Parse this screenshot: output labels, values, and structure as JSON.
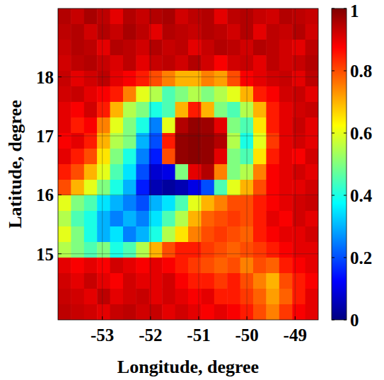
{
  "chart_data": {
    "type": "heatmap",
    "x_label": "Longitude, degree",
    "y_label": "Latitude, degree",
    "xlim": [
      -53.92,
      -48.52
    ],
    "ylim": [
      13.88,
      19.16
    ],
    "xticks": [
      -53,
      -52,
      -51,
      -50,
      -49
    ],
    "yticks": [
      15,
      16,
      17,
      18
    ],
    "grid": true,
    "color": "jet",
    "clim": [
      0,
      1
    ],
    "cticks": [
      0,
      0.2,
      0.4,
      0.6,
      0.8,
      1
    ],
    "z": [
      [
        0.95,
        0.93,
        0.96,
        0.94,
        0.9,
        0.95,
        0.93,
        0.95,
        0.96,
        0.92,
        0.94,
        0.95,
        0.9,
        0.94,
        0.95,
        0.93,
        0.92,
        0.95,
        0.94,
        0.93
      ],
      [
        0.94,
        0.95,
        0.92,
        0.95,
        0.93,
        0.96,
        0.94,
        0.9,
        0.95,
        0.94,
        0.93,
        0.95,
        0.94,
        0.92,
        0.95,
        0.9,
        0.94,
        0.93,
        0.95,
        0.92
      ],
      [
        0.93,
        0.95,
        0.94,
        0.9,
        0.95,
        0.94,
        0.92,
        0.95,
        0.93,
        0.94,
        0.9,
        0.93,
        0.95,
        0.94,
        0.92,
        0.95,
        0.94,
        0.92,
        0.9,
        0.94
      ],
      [
        0.92,
        0.94,
        0.95,
        0.93,
        0.91,
        0.94,
        0.9,
        0.93,
        0.94,
        0.92,
        0.95,
        0.92,
        0.88,
        0.92,
        0.93,
        0.9,
        0.94,
        0.92,
        0.93,
        0.95
      ],
      [
        0.93,
        0.9,
        0.92,
        0.94,
        0.9,
        0.88,
        0.85,
        0.8,
        0.75,
        0.7,
        0.7,
        0.75,
        0.72,
        0.8,
        0.88,
        0.9,
        0.92,
        0.93,
        0.9,
        0.94
      ],
      [
        0.92,
        0.93,
        0.9,
        0.88,
        0.85,
        0.75,
        0.6,
        0.55,
        0.45,
        0.5,
        0.55,
        0.5,
        0.55,
        0.6,
        0.7,
        0.85,
        0.88,
        0.92,
        0.93,
        0.9
      ],
      [
        0.9,
        0.88,
        0.92,
        0.85,
        0.7,
        0.55,
        0.5,
        0.4,
        0.45,
        0.7,
        0.85,
        0.7,
        0.5,
        0.45,
        0.55,
        0.7,
        0.85,
        0.9,
        0.92,
        0.93
      ],
      [
        0.9,
        0.85,
        0.88,
        0.75,
        0.6,
        0.5,
        0.4,
        0.25,
        0.6,
        0.95,
        0.98,
        0.97,
        0.9,
        0.5,
        0.45,
        0.65,
        0.85,
        0.9,
        0.93,
        0.9
      ],
      [
        0.88,
        0.9,
        0.85,
        0.7,
        0.55,
        0.5,
        0.3,
        0.2,
        0.85,
        0.98,
        0.99,
        0.98,
        0.95,
        0.55,
        0.4,
        0.6,
        0.82,
        0.9,
        0.92,
        0.9
      ],
      [
        0.9,
        0.85,
        0.8,
        0.65,
        0.5,
        0.4,
        0.25,
        0.15,
        0.8,
        0.98,
        0.99,
        0.98,
        0.9,
        0.5,
        0.45,
        0.65,
        0.85,
        0.9,
        0.88,
        0.92
      ],
      [
        0.85,
        0.8,
        0.7,
        0.6,
        0.45,
        0.35,
        0.2,
        0.08,
        0.1,
        0.5,
        0.9,
        0.95,
        0.75,
        0.5,
        0.55,
        0.75,
        0.88,
        0.9,
        0.92,
        0.9
      ],
      [
        0.8,
        0.7,
        0.6,
        0.5,
        0.4,
        0.3,
        0.15,
        0.05,
        0.03,
        0.05,
        0.1,
        0.2,
        0.45,
        0.6,
        0.7,
        0.8,
        0.88,
        0.9,
        0.9,
        0.92
      ],
      [
        0.6,
        0.5,
        0.45,
        0.35,
        0.3,
        0.25,
        0.2,
        0.3,
        0.35,
        0.45,
        0.6,
        0.7,
        0.75,
        0.8,
        0.8,
        0.85,
        0.88,
        0.9,
        0.92,
        0.93
      ],
      [
        0.55,
        0.45,
        0.4,
        0.3,
        0.25,
        0.3,
        0.25,
        0.35,
        0.45,
        0.55,
        0.7,
        0.78,
        0.8,
        0.82,
        0.8,
        0.85,
        0.9,
        0.88,
        0.92,
        0.9
      ],
      [
        0.6,
        0.5,
        0.4,
        0.3,
        0.35,
        0.25,
        0.3,
        0.4,
        0.55,
        0.65,
        0.75,
        0.8,
        0.82,
        0.8,
        0.78,
        0.85,
        0.88,
        0.9,
        0.9,
        0.92
      ],
      [
        0.55,
        0.5,
        0.45,
        0.5,
        0.4,
        0.45,
        0.55,
        0.7,
        0.8,
        0.85,
        0.85,
        0.82,
        0.8,
        0.78,
        0.8,
        0.82,
        0.85,
        0.88,
        0.9,
        0.9
      ],
      [
        0.9,
        0.88,
        0.9,
        0.88,
        0.92,
        0.9,
        0.88,
        0.9,
        0.88,
        0.85,
        0.82,
        0.8,
        0.78,
        0.8,
        0.75,
        0.8,
        0.78,
        0.85,
        0.88,
        0.9
      ],
      [
        0.92,
        0.9,
        0.93,
        0.9,
        0.88,
        0.92,
        0.9,
        0.9,
        0.92,
        0.88,
        0.85,
        0.85,
        0.82,
        0.85,
        0.8,
        0.75,
        0.7,
        0.8,
        0.85,
        0.88
      ],
      [
        0.93,
        0.92,
        0.9,
        0.94,
        0.9,
        0.92,
        0.93,
        0.9,
        0.92,
        0.9,
        0.88,
        0.9,
        0.85,
        0.85,
        0.82,
        0.78,
        0.72,
        0.78,
        0.85,
        0.9
      ],
      [
        0.94,
        0.93,
        0.92,
        0.9,
        0.93,
        0.94,
        0.92,
        0.93,
        0.9,
        0.92,
        0.9,
        0.88,
        0.9,
        0.88,
        0.85,
        0.8,
        0.75,
        0.82,
        0.88,
        0.9
      ]
    ]
  }
}
